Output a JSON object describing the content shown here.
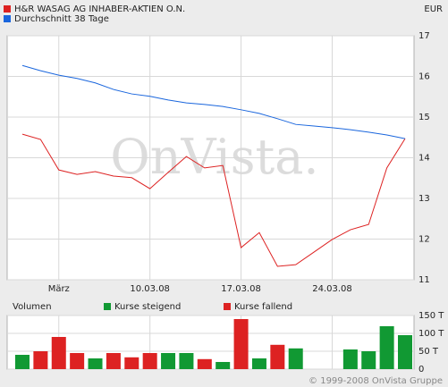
{
  "chart_data": [
    {
      "type": "line",
      "unit": "EUR",
      "watermark": "OnVista.",
      "categories": [
        null,
        null,
        "März",
        null,
        null,
        null,
        null,
        "10.03.08",
        null,
        null,
        null,
        null,
        "17.03.08",
        null,
        null,
        null,
        null,
        "24.03.08",
        null,
        null,
        null,
        null
      ],
      "series": [
        {
          "name": "H&R WASAG AG INHABER-AKTIEN O.N.",
          "color": "#dd2222",
          "values": [
            14.58,
            14.45,
            13.7,
            13.59,
            13.66,
            13.55,
            13.51,
            13.24,
            13.64,
            14.03,
            13.75,
            13.81,
            11.79,
            12.16,
            11.33,
            11.37,
            11.68,
            11.99,
            12.23,
            12.36,
            13.75,
            14.47
          ]
        },
        {
          "name": "Durchschnitt 38 Tage",
          "color": "#1a66dd",
          "values": [
            16.27,
            16.14,
            16.03,
            15.95,
            15.84,
            15.68,
            15.57,
            15.51,
            15.42,
            15.35,
            15.31,
            15.26,
            15.18,
            15.09,
            14.96,
            14.82,
            14.78,
            14.74,
            14.69,
            14.63,
            14.56,
            14.47
          ]
        }
      ],
      "ylim": [
        11,
        17
      ],
      "yticks": [
        11,
        12,
        13,
        14,
        15,
        16,
        17
      ],
      "grid": true
    },
    {
      "type": "bar",
      "title": "Volumen",
      "series": [
        {
          "name": "Kurse steigend",
          "color": "#119933",
          "values": [
            40,
            null,
            null,
            null,
            30,
            null,
            null,
            null,
            45,
            45,
            null,
            20,
            null,
            30,
            null,
            58,
            null,
            null,
            55,
            50,
            120,
            95
          ]
        },
        {
          "name": "Kurse fallend",
          "color": "#dd2222",
          "values": [
            null,
            50,
            90,
            45,
            null,
            45,
            33,
            45,
            null,
            null,
            28,
            null,
            140,
            null,
            68,
            null,
            null,
            null,
            null,
            null,
            null,
            null
          ]
        }
      ],
      "ylim": [
        0,
        150
      ],
      "yticks": [
        0,
        {
          "value": 50,
          "label": "50 T"
        },
        {
          "value": 100,
          "label": "100 T"
        },
        {
          "value": 150,
          "label": "150 T"
        }
      ],
      "grid": true
    }
  ],
  "copyright": "© 1999-2008 OnVista Gruppe"
}
